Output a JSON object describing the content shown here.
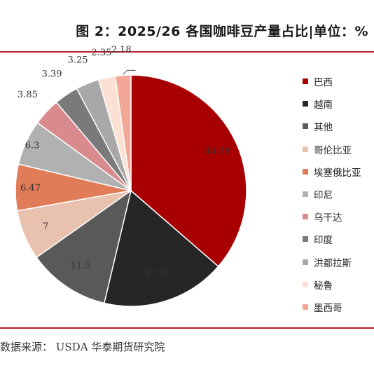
{
  "title": "图 2：2025/26 各国咖啡豆产量占比|单位：%",
  "source": "数据来源：  USDA 华泰期货研究院",
  "chart_data": {
    "type": "pie",
    "title": "图 2：2025/26 各国咖啡豆产量占比|单位：%",
    "unit": "%",
    "legend_position": "right",
    "slices": [
      {
        "name": "巴西",
        "value": 36.38,
        "color": "#a80000"
      },
      {
        "name": "越南",
        "value": 17.35,
        "color": "#262626"
      },
      {
        "name": "其他",
        "value": 11.5,
        "color": "#595959"
      },
      {
        "name": "哥伦比亚",
        "value": 7,
        "color": "#e8c2ae"
      },
      {
        "name": "埃塞俄比亚",
        "value": 6.47,
        "color": "#e07c58"
      },
      {
        "name": "印尼",
        "value": 6.3,
        "color": "#b1b1b1"
      },
      {
        "name": "乌干达",
        "value": 3.85,
        "color": "#d88a8d"
      },
      {
        "name": "印度",
        "value": 3.39,
        "color": "#7a7a7a"
      },
      {
        "name": "洪都拉斯",
        "value": 3.25,
        "color": "#a8a8a8"
      },
      {
        "name": "秘鲁",
        "value": 2.35,
        "color": "#fbe0d4"
      },
      {
        "name": "墨西哥",
        "value": 2.18,
        "color": "#f3a796"
      }
    ]
  }
}
